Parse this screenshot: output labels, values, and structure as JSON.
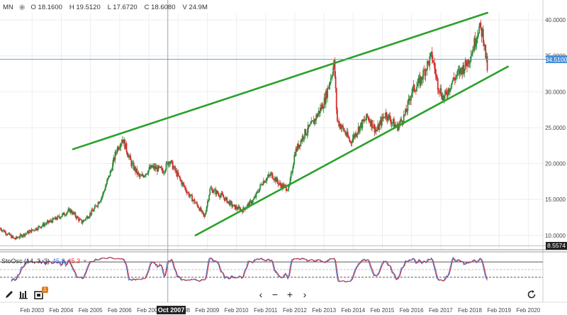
{
  "header": {
    "symbol": "MN",
    "visibility_icon": "eye-icon",
    "open": "O 18.1600",
    "high": "H 19.5120",
    "low": "L 17.6720",
    "close": "C 18.6080",
    "volume": "V 24.9M"
  },
  "price_tags": {
    "crosshair_price": "34.5100",
    "last_price": "8.5574"
  },
  "crosshair_date": "Oct 2007",
  "stochastic": {
    "label": "StoOsc (14, 3, 3)",
    "k_value": "45.8",
    "d_value": "45.3",
    "close_label": "×"
  },
  "toolbar": {
    "draw_icon": "pencil-icon",
    "indicators_icon": "indicators-icon",
    "studies_icon": "studies-icon",
    "badge": "1",
    "prev": "‹",
    "zoom_out": "−",
    "zoom_in": "+",
    "next": "›",
    "reset_icon": "reset-icon"
  },
  "colors": {
    "up": "#2e8b3e",
    "down": "#d62d2d",
    "channel": "#2aa12a",
    "crosshair_tag": "#4a8fd8",
    "last_tag": "#222222",
    "stoch_k": "#3a6fd8",
    "stoch_d": "#d33333"
  },
  "chart_data": {
    "type": "candlestick",
    "x_axis_labels": [
      "Feb 2003",
      "Feb 2004",
      "Feb 2005",
      "Feb 2006",
      "Feb 2007",
      "Feb 2008",
      "Feb 2009",
      "Feb 2010",
      "Feb 2011",
      "Feb 2012",
      "Feb 2013",
      "Feb 2014",
      "Feb 2015",
      "Feb 2016",
      "Feb 2017",
      "Feb 2018",
      "Feb 2019",
      "Feb 2020"
    ],
    "y_axis_labels": [
      "10.0000",
      "15.0000",
      "20.0000",
      "25.0000",
      "30.0000",
      "35.0000",
      "40.0000"
    ],
    "x_range": [
      2002.0,
      2020.6
    ],
    "ylim": [
      8.0,
      41.0
    ],
    "price_anchors": [
      [
        2002.0,
        11.0
      ],
      [
        2002.5,
        9.5
      ],
      [
        2003.0,
        10.5
      ],
      [
        2003.5,
        11.5
      ],
      [
        2004.0,
        12.5
      ],
      [
        2004.4,
        13.5
      ],
      [
        2004.8,
        11.8
      ],
      [
        2005.2,
        13.5
      ],
      [
        2005.5,
        15.5
      ],
      [
        2005.8,
        19.0
      ],
      [
        2006.0,
        22.0
      ],
      [
        2006.2,
        23.5
      ],
      [
        2006.5,
        20.0
      ],
      [
        2006.8,
        18.0
      ],
      [
        2007.2,
        19.5
      ],
      [
        2007.6,
        19.0
      ],
      [
        2007.8,
        20.5
      ],
      [
        2008.2,
        17.5
      ],
      [
        2008.5,
        15.5
      ],
      [
        2008.8,
        14.0
      ],
      [
        2009.0,
        12.5
      ],
      [
        2009.2,
        16.5
      ],
      [
        2009.6,
        15.5
      ],
      [
        2010.0,
        14.0
      ],
      [
        2010.3,
        13.5
      ],
      [
        2010.7,
        15.0
      ],
      [
        2011.0,
        17.5
      ],
      [
        2011.3,
        18.5
      ],
      [
        2011.6,
        17.0
      ],
      [
        2011.9,
        16.5
      ],
      [
        2012.1,
        21.5
      ],
      [
        2012.4,
        24.0
      ],
      [
        2012.7,
        25.5
      ],
      [
        2012.9,
        27.0
      ],
      [
        2013.1,
        28.5
      ],
      [
        2013.3,
        31.5
      ],
      [
        2013.45,
        34.0
      ],
      [
        2013.55,
        26.0
      ],
      [
        2013.8,
        24.5
      ],
      [
        2014.0,
        23.0
      ],
      [
        2014.3,
        25.0
      ],
      [
        2014.6,
        26.5
      ],
      [
        2014.9,
        24.5
      ],
      [
        2015.2,
        27.0
      ],
      [
        2015.6,
        25.0
      ],
      [
        2015.9,
        27.0
      ],
      [
        2016.1,
        30.0
      ],
      [
        2016.4,
        31.5
      ],
      [
        2016.6,
        33.5
      ],
      [
        2016.8,
        35.0
      ],
      [
        2017.0,
        31.0
      ],
      [
        2017.2,
        29.0
      ],
      [
        2017.5,
        31.5
      ],
      [
        2017.8,
        33.0
      ],
      [
        2018.0,
        34.0
      ],
      [
        2018.2,
        36.0
      ],
      [
        2018.4,
        39.0
      ],
      [
        2018.55,
        38.0
      ],
      [
        2018.7,
        33.0
      ]
    ],
    "channel_lines": [
      {
        "name": "upper",
        "from": [
          2004.5,
          22.0
        ],
        "to": [
          2018.7,
          41.0
        ]
      },
      {
        "name": "lower",
        "from": [
          2008.7,
          10.0
        ],
        "to": [
          2019.4,
          33.5
        ]
      }
    ],
    "crosshair": {
      "x": 2007.75,
      "y": 34.51
    },
    "last_price_line": 8.5574,
    "stochastic_levels": [
      80,
      20
    ]
  }
}
